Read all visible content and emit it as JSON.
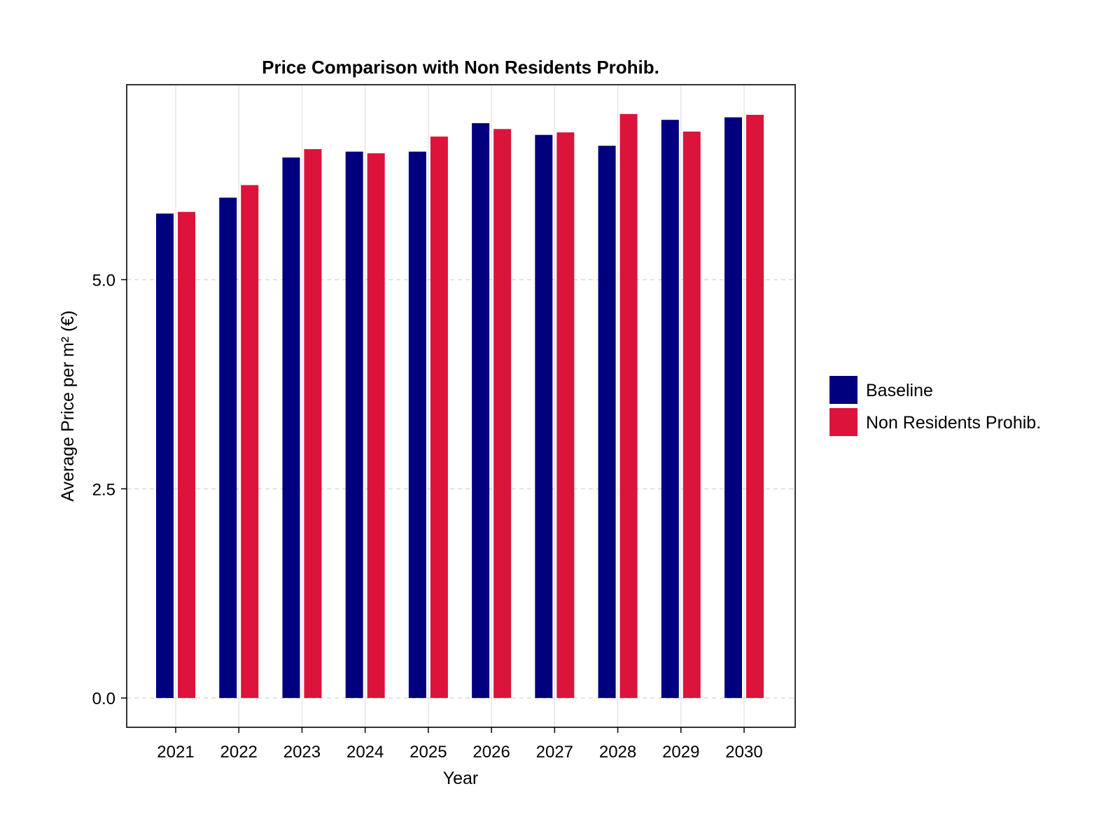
{
  "chart_data": {
    "type": "bar",
    "title": "Price Comparison with Non Residents Prohib.",
    "xlabel": "Year",
    "ylabel": "Average Price per m² (€)",
    "categories": [
      "2021",
      "2022",
      "2023",
      "2024",
      "2025",
      "2026",
      "2027",
      "2028",
      "2029",
      "2030"
    ],
    "series": [
      {
        "name": "Baseline",
        "color": "#00007f",
        "values": [
          5.79,
          5.98,
          6.46,
          6.53,
          6.53,
          6.87,
          6.73,
          6.6,
          6.91,
          6.94
        ]
      },
      {
        "name": "Non Residents Prohib.",
        "color": "#dc143c",
        "values": [
          5.81,
          6.13,
          6.56,
          6.51,
          6.71,
          6.8,
          6.76,
          6.98,
          6.77,
          6.97
        ]
      }
    ],
    "ylim": [
      -0.35,
      7.33
    ],
    "yticks": [
      "0.0",
      "2.5",
      "5.0"
    ],
    "ytick_values": [
      0,
      2.5,
      5.0
    ],
    "grid": {
      "x": true,
      "y": true,
      "y_style": "dashed"
    },
    "legend": "right"
  }
}
